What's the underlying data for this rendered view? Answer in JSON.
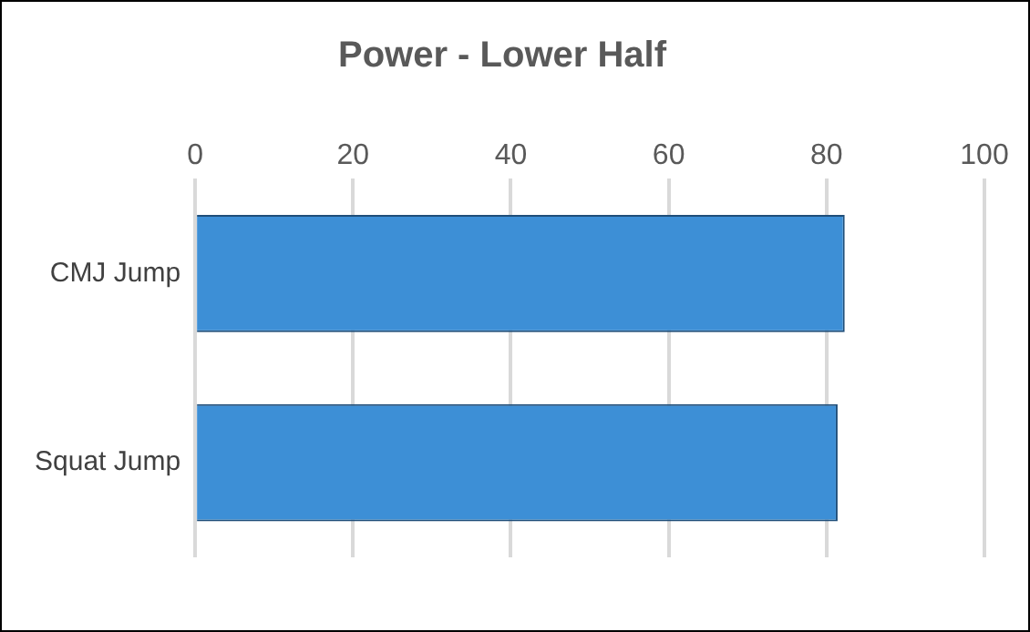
{
  "chart_data": {
    "type": "bar",
    "orientation": "horizontal",
    "title": "Power - Lower Half",
    "categories": [
      "CMJ Jump",
      "Squat Jump"
    ],
    "values": [
      82.3,
      81.4
    ],
    "color": "#3d8fd6",
    "xlim": [
      0,
      100
    ],
    "xticks": [
      0,
      20,
      40,
      60,
      80,
      100
    ],
    "grid": "x",
    "legend": false
  }
}
